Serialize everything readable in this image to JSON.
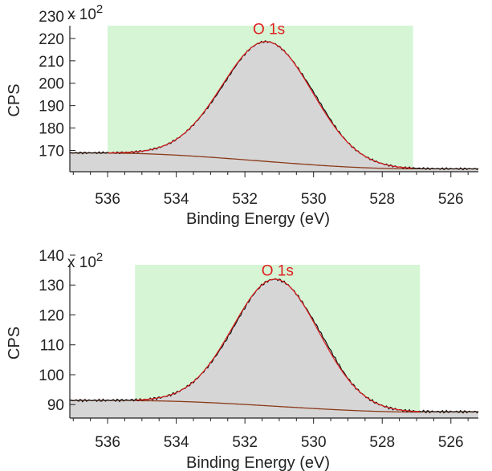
{
  "chart_data": [
    {
      "type": "line",
      "panel": "top",
      "xlabel": "Binding Energy (eV)",
      "ylabel": "CPS",
      "multiplier_label": "x 10",
      "multiplier_exponent": "2",
      "xlim": [
        537.1,
        525.2
      ],
      "ylim": [
        160.5,
        230
      ],
      "x_ticks": [
        536,
        534,
        532,
        530,
        528,
        526
      ],
      "x_tick_labels": [
        "536",
        "534",
        "532",
        "530",
        "528",
        "526"
      ],
      "y_ticks": [
        170,
        180,
        190,
        200,
        210,
        220,
        230
      ],
      "y_tick_labels": [
        "170",
        "180",
        "190",
        "200",
        "210",
        "220",
        "230"
      ],
      "peak_label": "O 1s",
      "peak_label_energy": 531.3,
      "peak_label_cps": 221.2,
      "region": {
        "from": 536.0,
        "to": 527.1,
        "color": "#d5f5d5"
      },
      "peak": {
        "center": 531.35,
        "fwhm": 3.1,
        "height": 53.5
      },
      "baseline": {
        "start": 536.0,
        "end": 527.1,
        "high": 168.8,
        "low": 161.8,
        "left_level": 168.9,
        "right_level": 161.8
      },
      "series": [
        {
          "name": "measured",
          "color": "#111111"
        },
        {
          "name": "fit",
          "color": "#e02020"
        },
        {
          "name": "background",
          "color": "#8b3a1a"
        }
      ],
      "fill_color": "#d6d6d6"
    },
    {
      "type": "line",
      "panel": "bottom",
      "xlabel": "Binding Energy (eV)",
      "ylabel": "CPS",
      "multiplier_label": "x 10",
      "multiplier_exponent": "2",
      "xlim": [
        537.1,
        525.2
      ],
      "ylim": [
        85.5,
        140
      ],
      "x_ticks": [
        536,
        534,
        532,
        530,
        528,
        526
      ],
      "x_tick_labels": [
        "536",
        "534",
        "532",
        "530",
        "528",
        "526"
      ],
      "y_ticks": [
        90,
        100,
        110,
        120,
        130,
        140
      ],
      "y_tick_labels": [
        "90",
        "100",
        "110",
        "120",
        "130",
        "140"
      ],
      "peak_label": "O 1s",
      "peak_label_energy": 531.05,
      "peak_label_cps": 132.6,
      "region": {
        "from": 535.2,
        "to": 526.9,
        "color": "#d5f5d5"
      },
      "peak": {
        "center": 531.1,
        "fwhm": 2.95,
        "height": 42.5
      },
      "baseline": {
        "start": 535.2,
        "end": 526.9,
        "high": 91.3,
        "low": 87.5,
        "left_level": 91.4,
        "right_level": 87.6
      },
      "series": [
        {
          "name": "measured",
          "color": "#111111"
        },
        {
          "name": "fit",
          "color": "#e02020"
        },
        {
          "name": "background",
          "color": "#8b3a1a"
        }
      ],
      "fill_color": "#d6d6d6"
    }
  ]
}
